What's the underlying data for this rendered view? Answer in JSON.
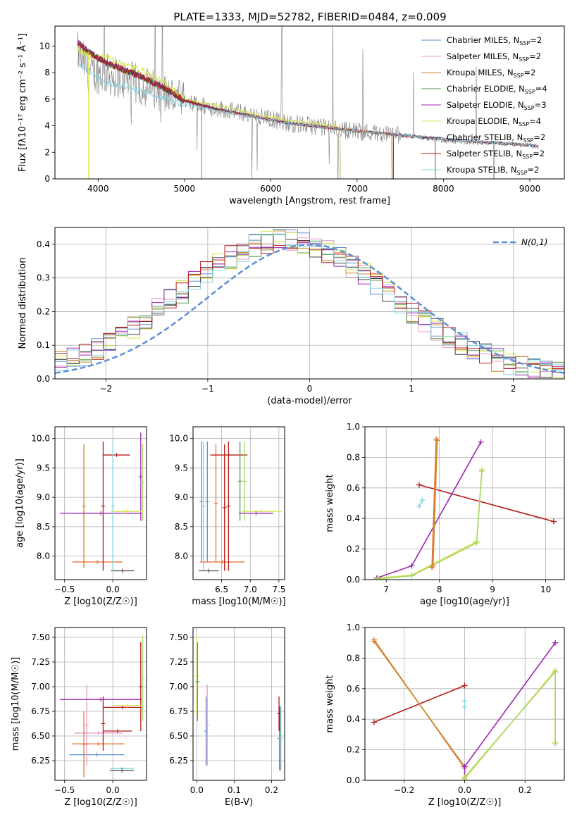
{
  "figure_title": "PLATE=1333, MJD=52782, FIBERID=0484, z=0.009",
  "legend_entries": [
    {
      "model": "Chabrier MILES",
      "nssp": "2",
      "color": "#5b8fd6"
    },
    {
      "model": "Salpeter MILES",
      "nssp": "2",
      "color": "#e89ac7"
    },
    {
      "model": "Kroupa MILES",
      "nssp": "2",
      "color": "#c8892a"
    },
    {
      "model": "Chabrier ELODIE",
      "nssp": "4",
      "color": "#5a9a5a"
    },
    {
      "model": "Salpeter ELODIE",
      "nssp": "3",
      "color": "#9c27b0"
    },
    {
      "model": "Kroupa ELODIE",
      "nssp": "4",
      "color": "#d9e64a"
    },
    {
      "model": "Chabrier STELIB",
      "nssp": "2",
      "color": "#444444"
    },
    {
      "model": "Salpeter STELIB",
      "nssp": "2",
      "color": "#b71c1c"
    },
    {
      "model": "Kroupa STELIB",
      "nssp": "2",
      "color": "#88d4e0"
    }
  ],
  "nssp_prefix": "N",
  "nssp_sub": "SSP",
  "chart_data": [
    {
      "id": "spectrum",
      "type": "line",
      "xlabel": "wavelength [Angstrom, rest frame]",
      "ylabel": "Flux [fλ10⁻¹⁷ erg cm⁻² s⁻¹ Å⁻¹]",
      "xlim": [
        3500,
        9400
      ],
      "ylim": [
        0,
        11.5
      ],
      "xticks": [
        4000,
        5000,
        6000,
        7000,
        8000,
        9000
      ],
      "yticks": [
        0,
        2,
        4,
        6,
        8,
        10
      ],
      "data_color": "#808080",
      "data_anchors": [
        [
          3760,
          9.6
        ],
        [
          3900,
          8.0
        ],
        [
          4100,
          7.9
        ],
        [
          4300,
          7.5
        ],
        [
          4500,
          7.0
        ],
        [
          4800,
          6.4
        ],
        [
          5000,
          5.7
        ],
        [
          5400,
          5.3
        ],
        [
          5800,
          4.8
        ],
        [
          6200,
          4.2
        ],
        [
          6600,
          3.9
        ],
        [
          7000,
          3.6
        ],
        [
          7500,
          3.3
        ],
        [
          8000,
          2.9
        ],
        [
          8500,
          2.7
        ],
        [
          9000,
          2.5
        ],
        [
          9100,
          2.4
        ]
      ],
      "model_anchors": [
        [
          3760,
          10.3
        ],
        [
          3900,
          9.5
        ],
        [
          4100,
          8.7
        ],
        [
          4300,
          8.2
        ],
        [
          4500,
          7.7
        ],
        [
          4800,
          6.7
        ],
        [
          5000,
          5.9
        ],
        [
          5400,
          5.2
        ],
        [
          5800,
          4.7
        ],
        [
          6200,
          4.2
        ],
        [
          6600,
          3.9
        ],
        [
          7000,
          3.6
        ],
        [
          7500,
          3.3
        ],
        [
          8000,
          3.0
        ],
        [
          8500,
          2.75
        ],
        [
          9000,
          2.55
        ],
        [
          9100,
          2.5
        ]
      ],
      "kroupa_elodie_anchors": [
        [
          3760,
          9.8
        ],
        [
          3900,
          9.2
        ],
        [
          4100,
          9.2
        ],
        [
          4300,
          8.6
        ],
        [
          4500,
          8.2
        ],
        [
          4800,
          7.1
        ],
        [
          5000,
          6.0
        ],
        [
          5400,
          5.5
        ],
        [
          5800,
          4.9
        ],
        [
          6200,
          4.4
        ],
        [
          6600,
          4.1
        ],
        [
          6800,
          3.9
        ]
      ],
      "kroupa_stelib_anchors": [
        [
          3760,
          8.8
        ],
        [
          3900,
          8.0
        ],
        [
          4100,
          7.2
        ],
        [
          4300,
          7.0
        ],
        [
          4500,
          6.6
        ],
        [
          4800,
          6.0
        ],
        [
          5000,
          5.6
        ],
        [
          5400,
          5.1
        ],
        [
          5800,
          4.7
        ],
        [
          6200,
          4.2
        ],
        [
          6600,
          3.9
        ],
        [
          7000,
          3.6
        ],
        [
          7500,
          3.3
        ],
        [
          8000,
          3.0
        ],
        [
          8500,
          2.75
        ],
        [
          9000,
          2.55
        ],
        [
          9100,
          2.5
        ]
      ]
    },
    {
      "id": "residuals",
      "type": "line",
      "xlabel": "(data-model)/error",
      "ylabel": "Normed distribution",
      "xlim": [
        -2.5,
        2.5
      ],
      "ylim": [
        0,
        0.45
      ],
      "xticks": [
        -2,
        -1,
        0,
        1,
        2
      ],
      "yticks": [
        0.0,
        0.1,
        0.2,
        0.3,
        0.4
      ],
      "gaussian_label": "N(0,1)",
      "gaussian_color": "#5b8fd6"
    },
    {
      "id": "age_vs_Z",
      "type": "scatter",
      "xlabel": "Z [log10(Z/Z☉)]",
      "ylabel": "age [log10(age/yr)]",
      "xlim": [
        -0.6,
        0.35
      ],
      "ylim": [
        7.6,
        10.2
      ],
      "xticks": [
        -0.5,
        0.0
      ],
      "yticks": [
        8.0,
        8.5,
        9.0,
        9.5,
        10.0
      ],
      "segments": [
        {
          "x0": -0.3,
          "x1": -0.3,
          "y0": 7.8,
          "y1": 9.9,
          "color": "#c8892a"
        },
        {
          "x0": -0.42,
          "x1": 0.1,
          "y0": 7.9,
          "y1": 7.9,
          "color": "#e8753a"
        },
        {
          "x0": -0.1,
          "x1": -0.1,
          "y0": 7.75,
          "y1": 9.95,
          "color": "#b71c1c"
        },
        {
          "x0": -0.1,
          "x1": 0.18,
          "y0": 9.72,
          "y1": 9.72,
          "color": "#b71c1c"
        },
        {
          "x0": -0.55,
          "x1": 0.3,
          "y0": 8.73,
          "y1": 8.73,
          "color": "#9c27b0"
        },
        {
          "x0": 0.29,
          "x1": 0.29,
          "y0": 8.6,
          "y1": 10.1,
          "color": "#9c27b0"
        },
        {
          "x0": -0.02,
          "x1": 0.3,
          "y0": 8.76,
          "y1": 8.76,
          "color": "#d9e64a"
        },
        {
          "x0": 0.31,
          "x1": 0.31,
          "y0": 8.6,
          "y1": 9.9,
          "color": "#a8d46a"
        },
        {
          "x0": -0.02,
          "x1": 0.22,
          "y0": 7.75,
          "y1": 7.75,
          "color": "#444444"
        },
        {
          "x0": 0.0,
          "x1": 0.0,
          "y0": 7.75,
          "y1": 9.95,
          "color": "#88d4e0"
        }
      ]
    },
    {
      "id": "age_vs_mass",
      "type": "scatter",
      "xlabel": "mass [log10(M/M☉)]",
      "ylabel": "",
      "xlim": [
        6.0,
        7.6
      ],
      "ylim": [
        7.6,
        10.2
      ],
      "xticks": [
        6.5,
        7.0,
        7.5
      ],
      "yticks": [
        8.0,
        8.5,
        9.0,
        9.5,
        10.0
      ],
      "segments": [
        {
          "x0": 6.15,
          "x1": 6.15,
          "y0": 7.9,
          "y1": 9.95,
          "color": "#5b8fd6"
        },
        {
          "x0": 6.25,
          "x1": 6.25,
          "y0": 7.9,
          "y1": 9.95,
          "color": "#5b8fd6"
        },
        {
          "x0": 6.12,
          "x1": 6.9,
          "y0": 7.9,
          "y1": 7.9,
          "color": "#e8753a"
        },
        {
          "x0": 6.4,
          "x1": 6.4,
          "y0": 7.9,
          "y1": 9.9,
          "color": "#e8753a"
        },
        {
          "x0": 6.55,
          "x1": 6.55,
          "y0": 7.75,
          "y1": 9.9,
          "color": "#b71c1c"
        },
        {
          "x0": 6.62,
          "x1": 6.62,
          "y0": 7.75,
          "y1": 9.95,
          "color": "#b71c1c"
        },
        {
          "x0": 6.3,
          "x1": 6.95,
          "y0": 9.72,
          "y1": 9.72,
          "color": "#b71c1c"
        },
        {
          "x0": 6.82,
          "x1": 6.82,
          "y0": 8.6,
          "y1": 9.95,
          "color": "#5a9a5a"
        },
        {
          "x0": 6.9,
          "x1": 6.9,
          "y0": 8.6,
          "y1": 9.95,
          "color": "#a8d46a"
        },
        {
          "x0": 6.85,
          "x1": 7.55,
          "y0": 8.76,
          "y1": 8.76,
          "color": "#d9e64a"
        },
        {
          "x0": 6.8,
          "x1": 7.4,
          "y0": 8.73,
          "y1": 8.73,
          "color": "#9c27b0"
        },
        {
          "x0": 6.1,
          "x1": 6.45,
          "y0": 7.75,
          "y1": 7.75,
          "color": "#444444"
        },
        {
          "x0": 6.18,
          "x1": 6.18,
          "y0": 7.75,
          "y1": 9.95,
          "color": "#88d4e0"
        }
      ]
    },
    {
      "id": "weight_vs_age",
      "type": "line",
      "xlabel": "age [log10(age/yr)]",
      "ylabel": "mass weight",
      "xlim": [
        6.6,
        10.35
      ],
      "ylim": [
        0.0,
        1.0
      ],
      "xticks": [
        7,
        8,
        9,
        10
      ],
      "yticks": [
        0.0,
        0.2,
        0.4,
        0.6,
        0.8,
        1.0
      ],
      "series": [
        {
          "color": "#b71c1c",
          "x": [
            7.62,
            10.15
          ],
          "y": [
            0.62,
            0.38
          ]
        },
        {
          "color": "#9c27b0",
          "x": [
            6.82,
            7.48,
            8.78
          ],
          "y": [
            0.01,
            0.09,
            0.9
          ]
        },
        {
          "color": "#d9e64a",
          "x": [
            6.85,
            7.48,
            8.7,
            8.8
          ],
          "y": [
            0.01,
            0.03,
            0.25,
            0.72
          ]
        },
        {
          "color": "#a8d46a",
          "x": [
            6.85,
            7.48,
            8.7,
            8.8
          ],
          "y": [
            0.005,
            0.025,
            0.24,
            0.71
          ]
        },
        {
          "color": "#e8753a",
          "x": [
            7.86,
            7.94
          ],
          "y": [
            0.08,
            0.92
          ]
        },
        {
          "color": "#c8892a",
          "x": [
            7.88,
            7.96
          ],
          "y": [
            0.09,
            0.91
          ]
        },
        {
          "color": "#88d4e0",
          "x": [
            7.62,
            7.68
          ],
          "y": [
            0.48,
            0.52
          ]
        }
      ]
    },
    {
      "id": "mass_vs_Z",
      "type": "scatter",
      "xlabel": "Z [log10(Z/Z☉)]",
      "ylabel": "mass [log10(M/M☉)]",
      "xlim": [
        -0.6,
        0.35
      ],
      "ylim": [
        6.05,
        7.6
      ],
      "xticks": [
        -0.5,
        0.0
      ],
      "yticks": [
        6.25,
        6.5,
        6.75,
        7.0,
        7.25,
        7.5
      ],
      "segments": [
        {
          "x0": -0.45,
          "x1": 0.12,
          "y0": 6.31,
          "y1": 6.31,
          "color": "#5b8fd6"
        },
        {
          "x0": -0.4,
          "x1": 0.1,
          "y0": 6.53,
          "y1": 6.53,
          "color": "#e89ac7"
        },
        {
          "x0": -0.27,
          "x1": -0.27,
          "y0": 6.2,
          "y1": 7.02,
          "color": "#e89ac7"
        },
        {
          "x0": -0.42,
          "x1": 0.12,
          "y0": 6.42,
          "y1": 6.42,
          "color": "#e8753a"
        },
        {
          "x0": -0.3,
          "x1": -0.3,
          "y0": 6.08,
          "y1": 6.75,
          "color": "#e8753a"
        },
        {
          "x0": -0.1,
          "x1": -0.1,
          "y0": 6.35,
          "y1": 6.9,
          "color": "#b71c1c"
        },
        {
          "x0": -0.1,
          "x1": 0.2,
          "y0": 6.55,
          "y1": 6.55,
          "color": "#b71c1c"
        },
        {
          "x0": -0.1,
          "x1": 0.3,
          "y0": 6.79,
          "y1": 6.79,
          "color": "#b71c1c"
        },
        {
          "x0": -0.55,
          "x1": 0.3,
          "y0": 6.87,
          "y1": 6.87,
          "color": "#9c27b0"
        },
        {
          "x0": 0.29,
          "x1": 0.29,
          "y0": 6.55,
          "y1": 7.45,
          "color": "#b71c1c"
        },
        {
          "x0": 0.31,
          "x1": 0.31,
          "y0": 6.65,
          "y1": 7.52,
          "color": "#a8d46a"
        },
        {
          "x0": 0.0,
          "x1": 0.3,
          "y0": 6.81,
          "y1": 6.81,
          "color": "#d9e64a"
        },
        {
          "x0": -0.03,
          "x1": 0.22,
          "y0": 6.17,
          "y1": 6.17,
          "color": "#88d4e0"
        },
        {
          "x0": -0.03,
          "x1": 0.22,
          "y0": 6.15,
          "y1": 6.15,
          "color": "#444444"
        }
      ]
    },
    {
      "id": "mass_vs_EBV",
      "type": "scatter",
      "xlabel": "E(B-V)",
      "ylabel": "",
      "xlim": [
        -0.01,
        0.235
      ],
      "ylim": [
        6.05,
        7.6
      ],
      "xticks": [
        0.0,
        0.1,
        0.2
      ],
      "yticks": [
        6.25,
        6.5,
        6.75,
        7.0,
        7.25,
        7.5
      ],
      "segments": [
        {
          "x0": 0.0,
          "x1": 0.0,
          "y0": 6.7,
          "y1": 7.52,
          "color": "#d9e64a"
        },
        {
          "x0": 0.002,
          "x1": 0.002,
          "y0": 6.65,
          "y1": 7.45,
          "color": "#5a9a5a"
        },
        {
          "x0": 0.025,
          "x1": 0.025,
          "y0": 6.2,
          "y1": 6.9,
          "color": "#5b8fd6"
        },
        {
          "x0": 0.028,
          "x1": 0.028,
          "y0": 6.2,
          "y1": 7.02,
          "color": "#e89ac7"
        },
        {
          "x0": 0.22,
          "x1": 0.22,
          "y0": 6.55,
          "y1": 6.9,
          "color": "#b71c1c"
        },
        {
          "x0": 0.222,
          "x1": 0.222,
          "y0": 6.15,
          "y1": 6.8,
          "color": "#444444"
        },
        {
          "x0": 0.225,
          "x1": 0.225,
          "y0": 6.15,
          "y1": 6.8,
          "color": "#88d4e0"
        }
      ]
    },
    {
      "id": "weight_vs_Z",
      "type": "line",
      "xlabel": "Z [log10(Z/Z☉)]",
      "ylabel": "mass weight",
      "xlim": [
        -0.33,
        0.33
      ],
      "ylim": [
        0.0,
        1.0
      ],
      "xticks": [
        -0.2,
        0.0,
        0.2
      ],
      "yticks": [
        0.0,
        0.2,
        0.4,
        0.6,
        0.8,
        1.0
      ],
      "series": [
        {
          "color": "#b71c1c",
          "x": [
            -0.3,
            0.0
          ],
          "y": [
            0.38,
            0.62
          ]
        },
        {
          "color": "#e8753a",
          "x": [
            -0.3,
            0.0
          ],
          "y": [
            0.92,
            0.08
          ]
        },
        {
          "color": "#c8892a",
          "x": [
            -0.3,
            0.0
          ],
          "y": [
            0.91,
            0.09
          ]
        },
        {
          "color": "#9c27b0",
          "x": [
            0.0,
            0.0,
            0.3
          ],
          "y": [
            0.01,
            0.09,
            0.9
          ]
        },
        {
          "color": "#d9e64a",
          "x": [
            0.0,
            0.3,
            0.3
          ],
          "y": [
            0.01,
            0.72,
            0.25
          ]
        },
        {
          "color": "#a8d46a",
          "x": [
            0.0,
            0.3,
            0.3
          ],
          "y": [
            0.02,
            0.71,
            0.24
          ]
        },
        {
          "color": "#88d4e0",
          "x": [
            0.0,
            0.0
          ],
          "y": [
            0.48,
            0.52
          ]
        }
      ]
    }
  ]
}
